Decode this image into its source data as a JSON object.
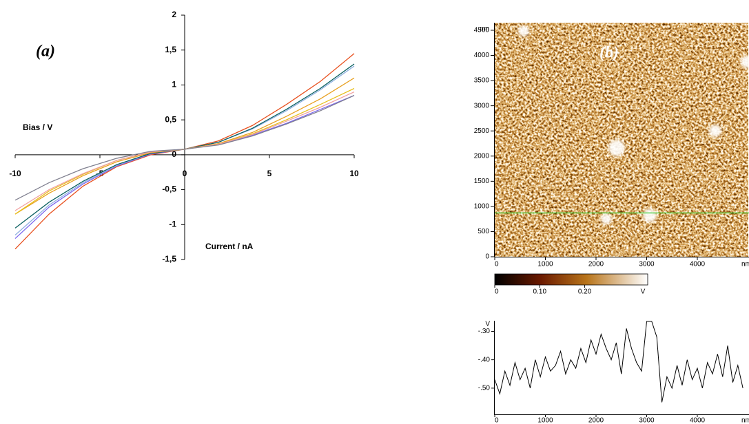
{
  "chart_data": [
    {
      "type": "line",
      "label": "(a)",
      "x_title": "Bias / V",
      "y_title": "Current / nA",
      "xlim": [
        -10,
        10
      ],
      "ylim": [
        -1.5,
        2
      ],
      "xticks": [
        -10,
        -5,
        0,
        5,
        10
      ],
      "yticks": [
        {
          "value": -1.5,
          "label": "-1,5"
        },
        -1,
        {
          "value": -0.5,
          "label": "-0,5"
        },
        0,
        {
          "value": 0.5,
          "label": "0,5"
        },
        1,
        {
          "value": 1.5,
          "label": "1,5"
        },
        2
      ],
      "x": [
        -10,
        -8,
        -6,
        -4,
        -2,
        0,
        2,
        4,
        6,
        8,
        10
      ],
      "series": [
        {
          "color": "#e8501e",
          "values": [
            -1.35,
            -0.85,
            -0.45,
            -0.17,
            0.0,
            0.08,
            0.2,
            0.42,
            0.72,
            1.05,
            1.45
          ]
        },
        {
          "color": "#7b68ee",
          "values": [
            -1.2,
            -0.75,
            -0.42,
            -0.16,
            0.01,
            0.08,
            0.15,
            0.28,
            0.45,
            0.65,
            0.85
          ]
        },
        {
          "color": "#8fb0e0",
          "values": [
            -1.15,
            -0.72,
            -0.4,
            -0.15,
            0.02,
            0.08,
            0.18,
            0.37,
            0.63,
            0.93,
            1.27
          ]
        },
        {
          "color": "#0a6060",
          "values": [
            -1.05,
            -0.68,
            -0.38,
            -0.14,
            0.02,
            0.08,
            0.18,
            0.38,
            0.65,
            0.95,
            1.3
          ]
        },
        {
          "color": "#e8a020",
          "values": [
            -0.85,
            -0.55,
            -0.3,
            -0.1,
            0.03,
            0.08,
            0.16,
            0.32,
            0.55,
            0.8,
            1.1
          ]
        },
        {
          "color": "#e8c020",
          "values": [
            -0.85,
            -0.52,
            -0.28,
            -0.08,
            0.04,
            0.08,
            0.15,
            0.3,
            0.5,
            0.72,
            0.95
          ]
        },
        {
          "color": "#f0a0a0",
          "values": [
            -0.8,
            -0.5,
            -0.27,
            -0.08,
            0.04,
            0.08,
            0.15,
            0.29,
            0.48,
            0.68,
            0.9
          ]
        },
        {
          "color": "#808090",
          "values": [
            -0.65,
            -0.4,
            -0.2,
            -0.05,
            0.05,
            0.08,
            0.14,
            0.27,
            0.44,
            0.63,
            0.85
          ]
        }
      ]
    },
    {
      "type": "image",
      "label": "(b)",
      "x_unit": "nm",
      "y_unit": "nm",
      "xlim": [
        0,
        5000
      ],
      "ylim": [
        0,
        4650
      ],
      "xticks": [
        0,
        1000,
        2000,
        3000,
        4000
      ],
      "yticks": [
        0,
        500,
        1000,
        1500,
        2000,
        2500,
        3000,
        3500,
        4000,
        4500
      ],
      "marker_line_y": 870,
      "marker_line_color": "#33cc33",
      "colorbar": {
        "clim": [
          0,
          0.34
        ],
        "ticks": [
          0,
          {
            "value": 0.1,
            "label": "0.10"
          },
          {
            "value": 0.2,
            "label": "0.20"
          }
        ],
        "unit": "V"
      }
    },
    {
      "type": "line",
      "x_unit": "nm",
      "y_unit": "V",
      "color": "#000000",
      "xlim": [
        0,
        5000
      ],
      "ylim": [
        -0.59,
        -0.265
      ],
      "xticks": [
        0,
        1000,
        2000,
        3000,
        4000
      ],
      "yticks": [
        {
          "value": -0.5,
          "label": "-.50"
        },
        {
          "value": -0.4,
          "label": "-.40"
        },
        {
          "value": -0.3,
          "label": "-.30"
        }
      ],
      "x": [
        0,
        100,
        200,
        300,
        400,
        500,
        600,
        700,
        800,
        900,
        1000,
        1100,
        1200,
        1300,
        1400,
        1500,
        1600,
        1700,
        1800,
        1900,
        2000,
        2100,
        2200,
        2300,
        2400,
        2500,
        2600,
        2700,
        2800,
        2900,
        3000,
        3100,
        3200,
        3300,
        3400,
        3500,
        3600,
        3700,
        3800,
        3900,
        4000,
        4100,
        4200,
        4300,
        4400,
        4500,
        4600,
        4700,
        4800,
        4900
      ],
      "values": [
        -0.47,
        -0.52,
        -0.44,
        -0.49,
        -0.41,
        -0.47,
        -0.43,
        -0.5,
        -0.4,
        -0.46,
        -0.39,
        -0.44,
        -0.42,
        -0.37,
        -0.45,
        -0.4,
        -0.43,
        -0.36,
        -0.41,
        -0.33,
        -0.38,
        -0.31,
        -0.36,
        -0.4,
        -0.34,
        -0.45,
        -0.29,
        -0.36,
        -0.41,
        -0.44,
        -0.265,
        -0.265,
        -0.32,
        -0.55,
        -0.46,
        -0.5,
        -0.42,
        -0.49,
        -0.4,
        -0.47,
        -0.43,
        -0.5,
        -0.41,
        -0.45,
        -0.38,
        -0.46,
        -0.35,
        -0.48,
        -0.42,
        -0.5
      ]
    }
  ]
}
